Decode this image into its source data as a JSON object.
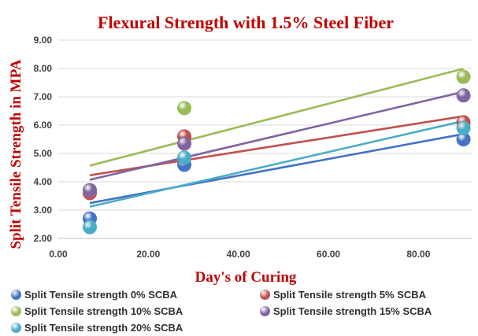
{
  "chart_data": {
    "type": "scatter",
    "title": "Flexural Strength with 1.5% Steel Fiber",
    "xlabel": "Day's of Curing",
    "ylabel": "Split Tensile Strength in MPA",
    "xlim": [
      0,
      90
    ],
    "ylim": [
      2,
      9
    ],
    "x_ticks": [
      "0.00",
      "20.00",
      "40.00",
      "60.00",
      "80.00"
    ],
    "y_ticks": [
      "2.00",
      "3.00",
      "4.00",
      "5.00",
      "6.00",
      "7.00",
      "8.00",
      "9.00"
    ],
    "grid": "horizontal",
    "legend_position": "bottom",
    "trendlines": "linear",
    "series": [
      {
        "name": "Split Tensile strength 0% SCBA",
        "color": "#4472c4",
        "x": [
          7,
          28,
          90
        ],
        "y": [
          2.7,
          4.6,
          5.5
        ]
      },
      {
        "name": "Split Tensile strength 5% SCBA",
        "color": "#c0504d",
        "x": [
          7,
          28,
          90
        ],
        "y": [
          3.6,
          5.6,
          6.1
        ]
      },
      {
        "name": "Split Tensile strength 10% SCBA",
        "color": "#9bbb59",
        "x": [
          7,
          28,
          90
        ],
        "y": [
          3.7,
          6.6,
          7.7
        ]
      },
      {
        "name": "Split Tensile strength 15% SCBA",
        "color": "#8064a2",
        "x": [
          7,
          28,
          90
        ],
        "y": [
          3.7,
          5.35,
          7.05
        ]
      },
      {
        "name": "Split Tensile strength 20% SCBA",
        "color": "#4bacc6",
        "x": [
          7,
          28,
          90
        ],
        "y": [
          2.4,
          4.85,
          5.9
        ]
      }
    ]
  }
}
